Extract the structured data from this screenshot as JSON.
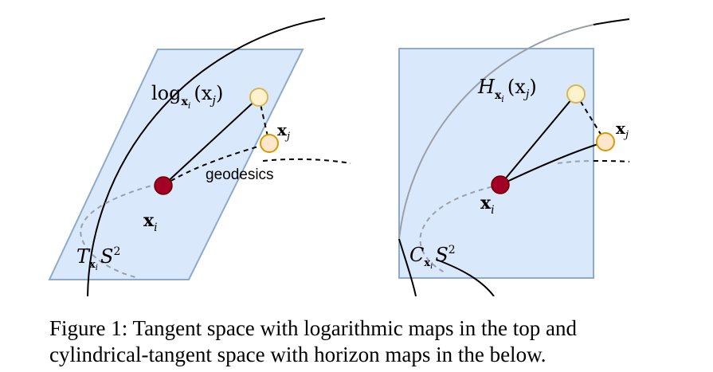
{
  "left_panel": {
    "log_label": {
      "main": "log",
      "sub": "x",
      "subsub": "i",
      "arg": "(x",
      "argsub": "j",
      "close": ")"
    },
    "xj_label": {
      "main": "x",
      "sub": "j"
    },
    "geodesics_label": "geodesics",
    "xi_label": {
      "main": "x",
      "sub": "i"
    },
    "tangent_label": {
      "main": "T",
      "sub": "x",
      "subsub": "i",
      "S": "S",
      "sup": "2"
    }
  },
  "right_panel": {
    "horizon_label": {
      "main": "H",
      "sub": "x",
      "subsub": "i",
      "arg": "(x",
      "argsub": "j",
      "close": ")"
    },
    "xj_label": {
      "main": "x",
      "sub": "j"
    },
    "xi_label": {
      "main": "x",
      "sub": "i"
    },
    "cyl_label": {
      "main": "C",
      "sub": "x",
      "subsub": "i",
      "S": "S",
      "sup": "2"
    }
  },
  "caption": {
    "line1": "Figure 1: Tangent space with logarithmic maps in the top and",
    "line2": "cylindrical-tangent space with horizon maps in the below."
  },
  "colors": {
    "plane_fill": "#dae8fc",
    "plane_stroke": "#8eaacb",
    "point_xi": "#a20025",
    "point_log": "#fff2cc",
    "point_log_stroke": "#d6b656",
    "point_xj": "#ffe6cc",
    "point_xj_stroke": "#d79b00",
    "dashed_gray": "#9aa0aa"
  }
}
